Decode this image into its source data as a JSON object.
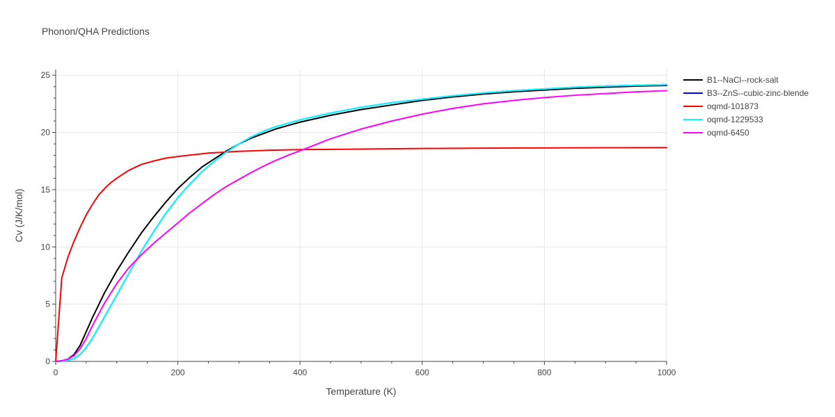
{
  "chart_data": {
    "type": "line",
    "title": "Phonon/QHA Predictions",
    "xlabel": "Temperature (K)",
    "ylabel": "Cv (J/K/mol)",
    "xlim": [
      0,
      1000
    ],
    "ylim": [
      0,
      25.5
    ],
    "xticks": [
      0,
      200,
      400,
      600,
      800,
      1000
    ],
    "yticks": [
      0,
      5,
      10,
      15,
      20,
      25
    ],
    "grid": true,
    "legend_position": "top-right",
    "series": [
      {
        "name": "B1--NaCl--rock-salt",
        "color": "#000000",
        "x": [
          0,
          10,
          20,
          30,
          40,
          50,
          60,
          80,
          100,
          120,
          140,
          160,
          180,
          200,
          220,
          240,
          260,
          280,
          300,
          320,
          340,
          360,
          380,
          400,
          450,
          500,
          550,
          600,
          650,
          700,
          750,
          800,
          850,
          900,
          950,
          1000
        ],
        "y": [
          0,
          0.05,
          0.2,
          0.6,
          1.4,
          2.6,
          3.8,
          6.0,
          7.9,
          9.6,
          11.2,
          12.6,
          13.9,
          15.1,
          16.1,
          17.0,
          17.7,
          18.4,
          19.0,
          19.5,
          19.9,
          20.3,
          20.6,
          20.9,
          21.5,
          22.0,
          22.4,
          22.8,
          23.1,
          23.35,
          23.55,
          23.7,
          23.85,
          23.95,
          24.05,
          24.1
        ]
      },
      {
        "name": "B3--ZnS--cubic-zinc-blende",
        "color": "#0000ff",
        "x": [
          0,
          10,
          20,
          30,
          40,
          50,
          60,
          80,
          100,
          120,
          140,
          160,
          180,
          200,
          220,
          240,
          260,
          280,
          300,
          320,
          340,
          360,
          380,
          400,
          450,
          500,
          550,
          600,
          650,
          700,
          750,
          800,
          850,
          900,
          950,
          1000
        ],
        "y": [
          0,
          0.02,
          0.08,
          0.25,
          0.6,
          1.2,
          2.0,
          3.9,
          5.8,
          7.7,
          9.6,
          11.3,
          12.9,
          14.3,
          15.5,
          16.6,
          17.5,
          18.3,
          19.0,
          19.6,
          20.1,
          20.5,
          20.8,
          21.1,
          21.7,
          22.2,
          22.6,
          22.9,
          23.2,
          23.45,
          23.65,
          23.8,
          23.95,
          24.05,
          24.12,
          24.18
        ]
      },
      {
        "name": "oqmd-101873",
        "color": "#ff0000",
        "x": [
          0,
          10,
          20,
          30,
          40,
          50,
          60,
          70,
          80,
          90,
          100,
          120,
          140,
          160,
          180,
          200,
          250,
          300,
          350,
          400,
          500,
          600,
          700,
          800,
          900,
          1000
        ],
        "y": [
          0,
          7.3,
          9.1,
          10.5,
          11.7,
          12.8,
          13.7,
          14.5,
          15.1,
          15.6,
          16.0,
          16.7,
          17.2,
          17.5,
          17.75,
          17.9,
          18.2,
          18.35,
          18.45,
          18.5,
          18.55,
          18.6,
          18.63,
          18.65,
          18.67,
          18.68
        ]
      },
      {
        "name": "oqmd-1229533",
        "color": "#00ffff",
        "x": [
          0,
          10,
          20,
          30,
          40,
          50,
          60,
          80,
          100,
          120,
          140,
          160,
          180,
          200,
          220,
          240,
          260,
          280,
          300,
          320,
          340,
          360,
          380,
          400,
          450,
          500,
          550,
          600,
          650,
          700,
          750,
          800,
          850,
          900,
          950,
          1000
        ],
        "y": [
          0,
          0.02,
          0.08,
          0.25,
          0.6,
          1.2,
          2.0,
          3.9,
          5.8,
          7.7,
          9.6,
          11.3,
          12.9,
          14.3,
          15.5,
          16.6,
          17.5,
          18.3,
          19.0,
          19.6,
          20.1,
          20.5,
          20.8,
          21.1,
          21.7,
          22.2,
          22.6,
          22.9,
          23.2,
          23.45,
          23.65,
          23.8,
          23.95,
          24.05,
          24.12,
          24.18
        ]
      },
      {
        "name": "oqmd-6450",
        "color": "#ff00ff",
        "x": [
          0,
          10,
          20,
          30,
          40,
          50,
          60,
          80,
          100,
          120,
          140,
          160,
          180,
          200,
          220,
          240,
          260,
          280,
          300,
          320,
          340,
          360,
          380,
          400,
          450,
          500,
          550,
          600,
          650,
          700,
          750,
          800,
          850,
          900,
          950,
          1000
        ],
        "y": [
          0,
          0.05,
          0.2,
          0.5,
          1.1,
          2.0,
          3.1,
          5.1,
          6.8,
          8.2,
          9.3,
          10.3,
          11.2,
          12.1,
          13.0,
          13.8,
          14.6,
          15.3,
          15.9,
          16.5,
          17.05,
          17.55,
          18.0,
          18.4,
          19.45,
          20.3,
          21.0,
          21.6,
          22.1,
          22.5,
          22.8,
          23.05,
          23.25,
          23.4,
          23.55,
          23.65
        ]
      }
    ]
  }
}
